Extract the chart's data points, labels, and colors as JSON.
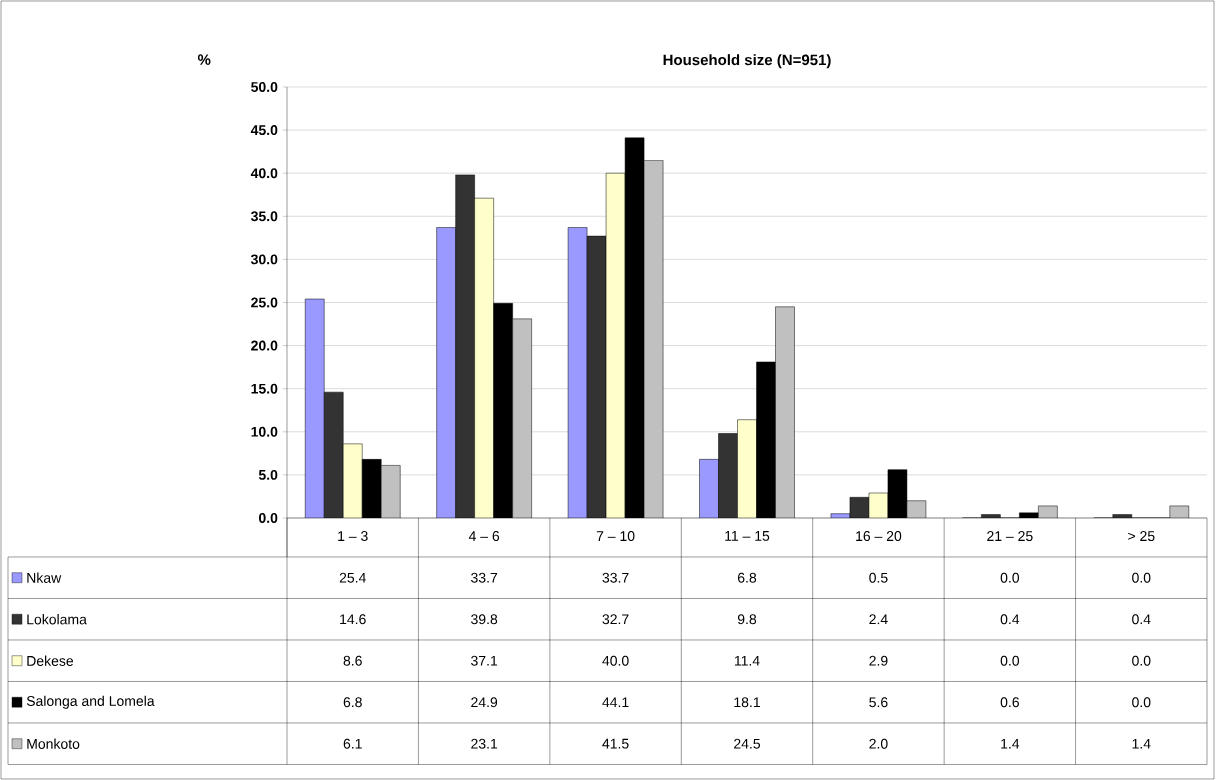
{
  "chart_data": {
    "type": "bar",
    "title": "Household size (N=951)",
    "ylabel": "%",
    "categories": [
      "1 – 3",
      "4 – 6",
      "7 – 10",
      "11 – 15",
      "16 – 20",
      "21 – 25",
      "> 25"
    ],
    "series": [
      {
        "name": "Nkaw",
        "color": "#9999ff",
        "values": [
          25.4,
          33.7,
          33.7,
          6.8,
          0.5,
          0.0,
          0.0
        ],
        "value_labels": [
          "25.4",
          "33.7",
          "33.7",
          "6.8",
          "0.5",
          "0.0",
          "0.0"
        ]
      },
      {
        "name": "Lokolama",
        "color": "#333333",
        "values": [
          14.6,
          39.8,
          32.7,
          9.8,
          2.4,
          0.4,
          0.4
        ],
        "value_labels": [
          "14.6",
          "39.8",
          "32.7",
          "9.8",
          "2.4",
          "0.4",
          "0.4"
        ]
      },
      {
        "name": "Dekese",
        "color": "#ffffcc",
        "values": [
          8.6,
          37.1,
          40.0,
          11.4,
          2.9,
          0.0,
          0.0
        ],
        "value_labels": [
          "8.6",
          "37.1",
          "40.0",
          "11.4",
          "2.9",
          "0.0",
          "0.0"
        ]
      },
      {
        "name": "Salonga and Lomela",
        "color": "#000000",
        "values": [
          6.8,
          24.9,
          44.1,
          18.1,
          5.6,
          0.6,
          0.0
        ],
        "value_labels": [
          "6.8",
          "24.9",
          "44.1",
          "18.1",
          "5.6",
          "0.6",
          "0.0"
        ]
      },
      {
        "name": "Monkoto",
        "color": "#c0c0c0",
        "values": [
          6.1,
          23.1,
          41.5,
          24.5,
          2.0,
          1.4,
          1.4
        ],
        "value_labels": [
          "6.1",
          "23.1",
          "41.5",
          "24.5",
          "2.0",
          "1.4",
          "1.4"
        ]
      }
    ],
    "ylim": [
      0,
      50
    ],
    "yticks": [
      {
        "value": 0,
        "label": "0.0"
      },
      {
        "value": 5,
        "label": "5.0"
      },
      {
        "value": 10,
        "label": "10.0"
      },
      {
        "value": 15,
        "label": "15.0"
      },
      {
        "value": 20,
        "label": "20.0"
      },
      {
        "value": 25,
        "label": "25.0"
      },
      {
        "value": 30,
        "label": "30.0"
      },
      {
        "value": 35,
        "label": "35.0"
      },
      {
        "value": 40,
        "label": "40.0"
      },
      {
        "value": 45,
        "label": "45.0"
      },
      {
        "value": 50,
        "label": "50.0"
      }
    ],
    "grid": "y",
    "legend": "bottom"
  }
}
